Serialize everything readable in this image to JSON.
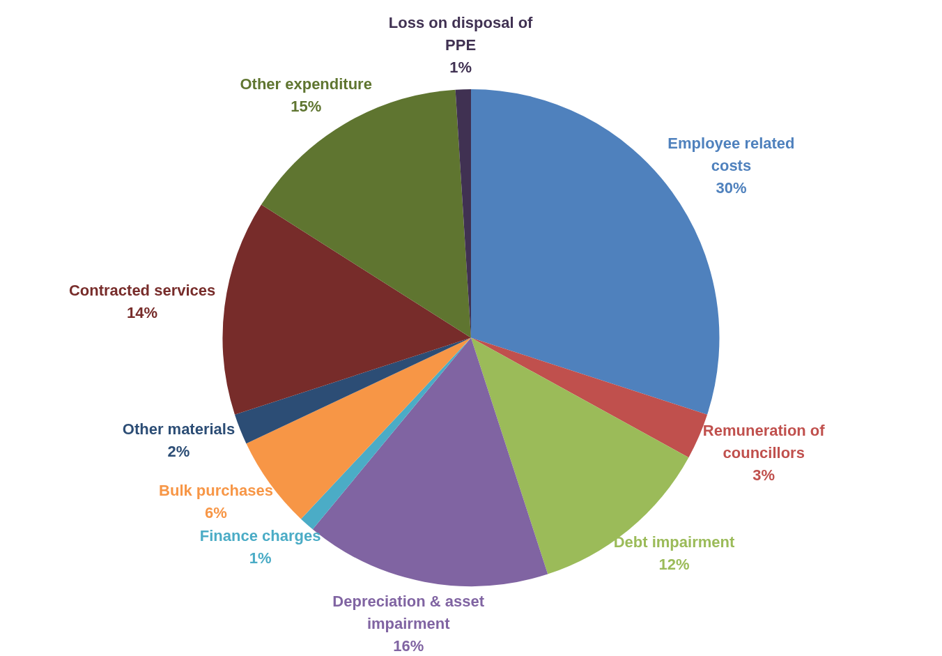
{
  "chart_data": {
    "type": "pie",
    "categories": [
      "Employee related costs",
      "Remuneration of councillors",
      "Debt impairment",
      "Depreciation & asset impairment",
      "Finance charges",
      "Bulk purchases",
      "Other materials",
      "Contracted services",
      "Other expenditure",
      "Loss on disposal of PPE"
    ],
    "values": [
      30,
      3,
      12,
      16,
      1,
      6,
      2,
      14,
      15,
      1
    ],
    "value_labels": [
      "30%",
      "3%",
      "12%",
      "16%",
      "1%",
      "6%",
      "2%",
      "14%",
      "15%",
      "1%"
    ],
    "colors": [
      "#4f81bd",
      "#c0504d",
      "#9bbb59",
      "#8064a2",
      "#4bacc6",
      "#f79646",
      "#2c4d75",
      "#772c2a",
      "#5f7530",
      "#403152"
    ],
    "legend": false
  }
}
